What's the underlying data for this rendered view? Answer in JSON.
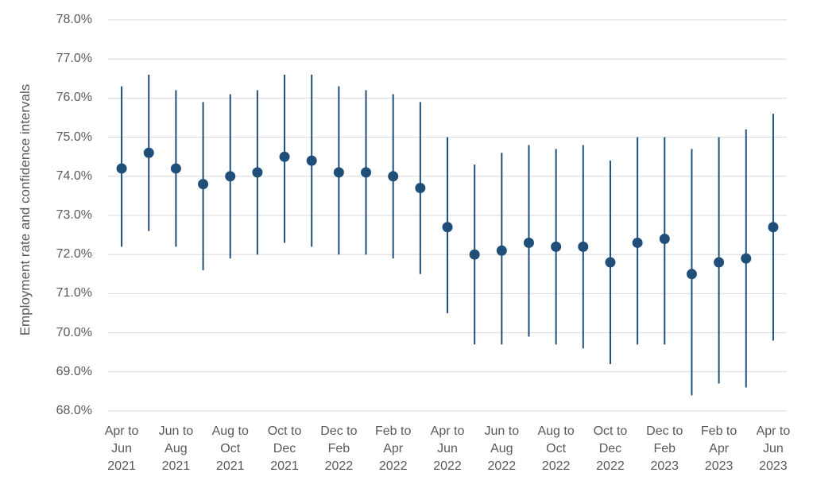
{
  "chart_data": {
    "type": "scatter",
    "error_bars": true,
    "title": "",
    "xlabel": "",
    "ylabel": "Employment rate and confidence intervals",
    "ylim": [
      68.0,
      78.0
    ],
    "grid": "horizontal",
    "legend_position": "none",
    "marker_color": "#1F4E79",
    "gridline_color": "#D9D9D9",
    "axis_text_color": "#595959",
    "y_tick_values": [
      78,
      77,
      76,
      75,
      74,
      73,
      72,
      71,
      70,
      69,
      68
    ],
    "y_tick_labels": [
      "78.0%",
      "77.0%",
      "76.0%",
      "75.0%",
      "74.0%",
      "73.0%",
      "72.0%",
      "71.0%",
      "70.0%",
      "69.0%",
      "68.0%"
    ],
    "points": [
      {
        "y": 74.2,
        "lo": 72.2,
        "hi": 76.3
      },
      {
        "y": 74.6,
        "lo": 72.6,
        "hi": 76.6
      },
      {
        "y": 74.2,
        "lo": 72.2,
        "hi": 76.2
      },
      {
        "y": 73.8,
        "lo": 71.6,
        "hi": 75.9
      },
      {
        "y": 74.0,
        "lo": 71.9,
        "hi": 76.1
      },
      {
        "y": 74.1,
        "lo": 72.0,
        "hi": 76.2
      },
      {
        "y": 74.5,
        "lo": 72.3,
        "hi": 76.6
      },
      {
        "y": 74.4,
        "lo": 72.2,
        "hi": 76.6
      },
      {
        "y": 74.1,
        "lo": 72.0,
        "hi": 76.3
      },
      {
        "y": 74.1,
        "lo": 72.0,
        "hi": 76.2
      },
      {
        "y": 74.0,
        "lo": 71.9,
        "hi": 76.1
      },
      {
        "y": 73.7,
        "lo": 71.5,
        "hi": 75.9
      },
      {
        "y": 72.7,
        "lo": 70.5,
        "hi": 75.0
      },
      {
        "y": 72.0,
        "lo": 69.7,
        "hi": 74.3
      },
      {
        "y": 72.1,
        "lo": 69.7,
        "hi": 74.6
      },
      {
        "y": 72.3,
        "lo": 69.9,
        "hi": 74.8
      },
      {
        "y": 72.2,
        "lo": 69.7,
        "hi": 74.7
      },
      {
        "y": 72.2,
        "lo": 69.6,
        "hi": 74.8
      },
      {
        "y": 71.8,
        "lo": 69.2,
        "hi": 74.4
      },
      {
        "y": 72.3,
        "lo": 69.7,
        "hi": 75.0
      },
      {
        "y": 72.4,
        "lo": 69.7,
        "hi": 75.0
      },
      {
        "y": 71.5,
        "lo": 68.4,
        "hi": 74.7
      },
      {
        "y": 71.8,
        "lo": 68.7,
        "hi": 75.0
      },
      {
        "y": 71.9,
        "lo": 68.6,
        "hi": 75.2
      },
      {
        "y": 72.7,
        "lo": 69.8,
        "hi": 75.6
      }
    ],
    "x_tick_labels": [
      {
        "point_index": 0,
        "lines": [
          "Apr to",
          "Jun",
          "2021"
        ]
      },
      {
        "point_index": 2,
        "lines": [
          "Jun to",
          "Aug",
          "2021"
        ]
      },
      {
        "point_index": 4,
        "lines": [
          "Aug to",
          "Oct",
          "2021"
        ]
      },
      {
        "point_index": 6,
        "lines": [
          "Oct to",
          "Dec",
          "2021"
        ]
      },
      {
        "point_index": 8,
        "lines": [
          "Dec to",
          "Feb",
          "2022"
        ]
      },
      {
        "point_index": 10,
        "lines": [
          "Feb to",
          "Apr",
          "2022"
        ]
      },
      {
        "point_index": 12,
        "lines": [
          "Apr to",
          "Jun",
          "2022"
        ]
      },
      {
        "point_index": 14,
        "lines": [
          "Jun to",
          "Aug",
          "2022"
        ]
      },
      {
        "point_index": 16,
        "lines": [
          "Aug to",
          "Oct",
          "2022"
        ]
      },
      {
        "point_index": 18,
        "lines": [
          "Oct to",
          "Dec",
          "2022"
        ]
      },
      {
        "point_index": 20,
        "lines": [
          "Dec to",
          "Feb",
          "2023"
        ]
      },
      {
        "point_index": 22,
        "lines": [
          "Feb to",
          "Apr",
          "2023"
        ]
      },
      {
        "point_index": 24,
        "lines": [
          "Apr to",
          "Jun",
          "2023"
        ]
      }
    ]
  }
}
